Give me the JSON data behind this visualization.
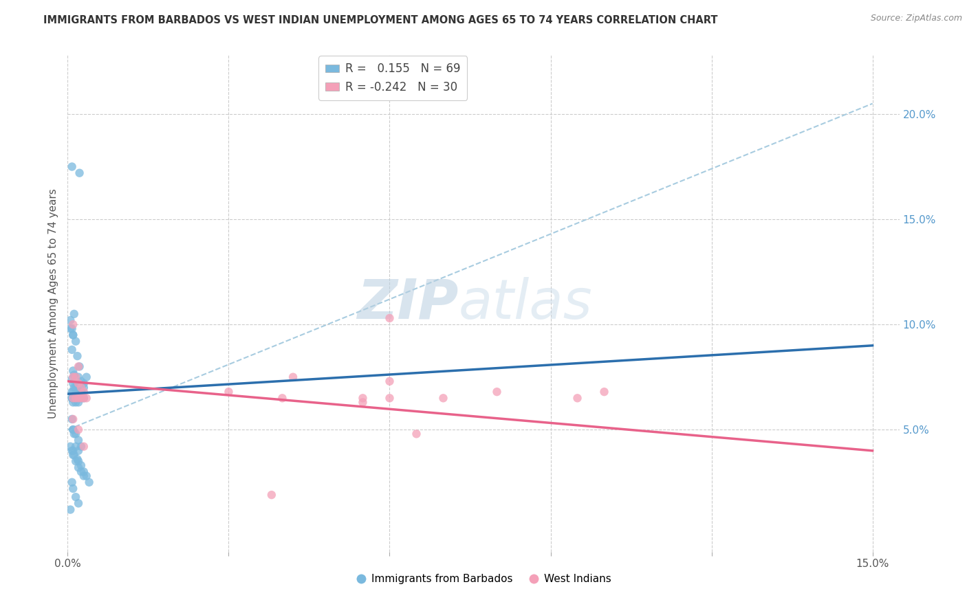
{
  "title": "IMMIGRANTS FROM BARBADOS VS WEST INDIAN UNEMPLOYMENT AMONG AGES 65 TO 74 YEARS CORRELATION CHART",
  "source": "Source: ZipAtlas.com",
  "ylabel_left": "Unemployment Among Ages 65 to 74 years",
  "xlim": [
    0.0,
    0.155
  ],
  "ylim": [
    -0.008,
    0.228
  ],
  "xticks": [
    0.0,
    0.03,
    0.06,
    0.09,
    0.12,
    0.15
  ],
  "yticks_right": [
    0.05,
    0.1,
    0.15,
    0.2
  ],
  "ytick_labels_right": [
    "5.0%",
    "10.0%",
    "15.0%",
    "20.0%"
  ],
  "legend_r1": "R =  0.155",
  "legend_n1": "N = 69",
  "legend_r2": "R = -0.242",
  "legend_n2": "N = 30",
  "legend_label1": "Immigrants from Barbados",
  "legend_label2": "West Indians",
  "watermark_zip": "ZIP",
  "watermark_atlas": "atlas",
  "blue_color": "#7ab9de",
  "pink_color": "#f4a0b8",
  "blue_line_color": "#2c6fad",
  "pink_line_color": "#e8628a",
  "blue_dashed_color": "#a8cce0",
  "background_color": "#ffffff",
  "blue_scatter_x": [
    0.0008,
    0.0022,
    0.0012,
    0.0005,
    0.0008,
    0.001,
    0.0015,
    0.0008,
    0.0005,
    0.001,
    0.0018,
    0.0022,
    0.001,
    0.0012,
    0.0008,
    0.001,
    0.0015,
    0.002,
    0.0025,
    0.003,
    0.0018,
    0.0012,
    0.0008,
    0.001,
    0.0015,
    0.002,
    0.0025,
    0.003,
    0.0035,
    0.0012,
    0.0008,
    0.001,
    0.0015,
    0.002,
    0.0008,
    0.001,
    0.0015,
    0.002,
    0.0025,
    0.003,
    0.0008,
    0.001,
    0.0015,
    0.002,
    0.0025,
    0.0005,
    0.001,
    0.0012,
    0.0018,
    0.002,
    0.0025,
    0.003,
    0.0035,
    0.004,
    0.0008,
    0.001,
    0.0015,
    0.002,
    0.0025,
    0.003,
    0.0008,
    0.001,
    0.0015,
    0.002,
    0.0005,
    0.001,
    0.0012,
    0.0015,
    0.002
  ],
  "blue_scatter_y": [
    0.175,
    0.172,
    0.105,
    0.102,
    0.098,
    0.095,
    0.092,
    0.088,
    0.098,
    0.095,
    0.085,
    0.08,
    0.078,
    0.076,
    0.074,
    0.072,
    0.07,
    0.075,
    0.073,
    0.072,
    0.07,
    0.07,
    0.068,
    0.068,
    0.067,
    0.068,
    0.068,
    0.07,
    0.075,
    0.065,
    0.065,
    0.065,
    0.065,
    0.065,
    0.065,
    0.063,
    0.063,
    0.063,
    0.065,
    0.065,
    0.055,
    0.05,
    0.048,
    0.045,
    0.042,
    0.042,
    0.04,
    0.038,
    0.036,
    0.035,
    0.033,
    0.03,
    0.028,
    0.025,
    0.04,
    0.038,
    0.035,
    0.032,
    0.03,
    0.028,
    0.025,
    0.022,
    0.018,
    0.015,
    0.012,
    0.05,
    0.048,
    0.042,
    0.04
  ],
  "pink_scatter_x": [
    0.001,
    0.002,
    0.001,
    0.0015,
    0.002,
    0.0025,
    0.003,
    0.001,
    0.0015,
    0.002,
    0.0025,
    0.003,
    0.0035,
    0.001,
    0.002,
    0.003,
    0.06,
    0.07,
    0.042,
    0.03,
    0.06,
    0.055,
    0.095,
    0.1,
    0.04,
    0.06,
    0.055,
    0.08,
    0.065,
    0.038
  ],
  "pink_scatter_y": [
    0.1,
    0.08,
    0.075,
    0.075,
    0.072,
    0.07,
    0.065,
    0.065,
    0.065,
    0.065,
    0.065,
    0.068,
    0.065,
    0.055,
    0.05,
    0.042,
    0.103,
    0.065,
    0.075,
    0.068,
    0.073,
    0.065,
    0.065,
    0.068,
    0.065,
    0.065,
    0.063,
    0.068,
    0.048,
    0.019
  ],
  "blue_trend_x": [
    0.0,
    0.15
  ],
  "blue_trend_y": [
    0.067,
    0.09
  ],
  "blue_dashed_trend_y": [
    0.05,
    0.205
  ],
  "pink_trend_x": [
    0.0,
    0.15
  ],
  "pink_trend_y": [
    0.073,
    0.04
  ]
}
